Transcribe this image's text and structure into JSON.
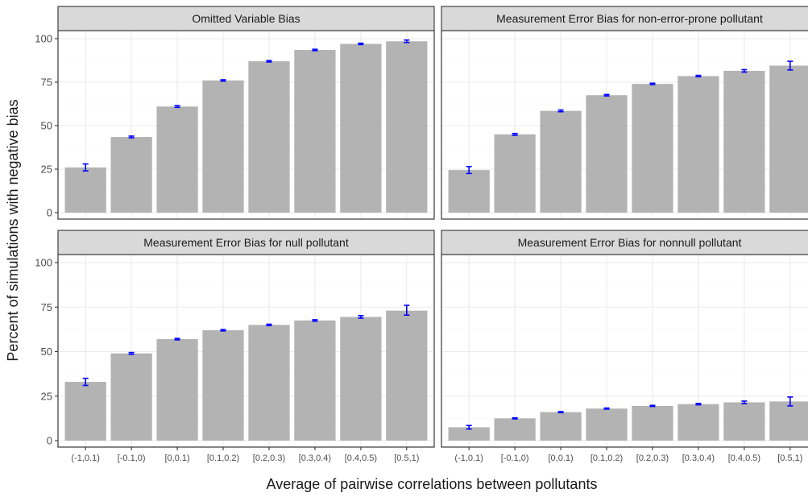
{
  "chart_data": {
    "type": "bar",
    "xlabel": "Average of pairwise correlations between pollutants",
    "ylabel": "Percent of simulations with negative bias",
    "categories": [
      "(-1,0.1)",
      "[-0.1,0)",
      "[0,0.1)",
      "[0.1,0.2)",
      "[0.2,0.3)",
      "[0.3,0.4)",
      "[0.4,0.5)",
      "[0.5,1)"
    ],
    "ylim": [
      0,
      100
    ],
    "yticks": [
      0,
      25,
      50,
      75,
      100
    ],
    "grid": true,
    "panels": [
      {
        "title": "Omitted Variable Bias",
        "values": [
          26,
          43.5,
          61,
          76,
          87,
          93.5,
          97,
          98.5
        ],
        "err_low": [
          24,
          43,
          60.5,
          75.6,
          86.6,
          93.1,
          96.6,
          97.8
        ],
        "err_high": [
          28,
          44,
          61.5,
          76.4,
          87.4,
          93.9,
          97.4,
          99.2
        ]
      },
      {
        "title": "Measurement Error Bias for non-error-prone pollutant",
        "values": [
          24.5,
          45,
          58.5,
          67.5,
          74,
          78.5,
          81.5,
          84.5
        ],
        "err_low": [
          22.5,
          44.5,
          58,
          67.1,
          73.6,
          78.1,
          80.8,
          82
        ],
        "err_high": [
          26.5,
          45.5,
          59,
          67.9,
          74.4,
          78.9,
          82.2,
          87
        ]
      },
      {
        "title": "Measurement Error Bias for null pollutant",
        "values": [
          33,
          49,
          57,
          62,
          65,
          67.5,
          69.5,
          73
        ],
        "err_low": [
          31,
          48.5,
          56.6,
          61.6,
          64.6,
          67.1,
          68.8,
          70.5
        ],
        "err_high": [
          35,
          49.5,
          57.4,
          62.4,
          65.4,
          67.9,
          70.2,
          76
        ]
      },
      {
        "title": "Measurement Error Bias for nonnull pollutant",
        "values": [
          7.5,
          12.5,
          16,
          18,
          19.5,
          20.5,
          21.5,
          22
        ],
        "err_low": [
          6.5,
          12.2,
          15.7,
          17.7,
          19.2,
          20.1,
          20.8,
          19.5
        ],
        "err_high": [
          8.5,
          12.8,
          16.3,
          18.3,
          19.8,
          20.9,
          22.2,
          24.5
        ]
      }
    ]
  }
}
